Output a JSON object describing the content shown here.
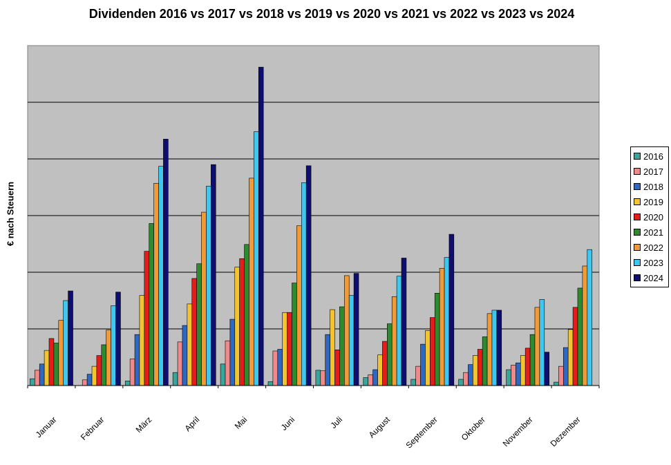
{
  "chart_data": {
    "type": "bar",
    "title": "Dividenden 2016 vs 2017 vs 2018 vs 2019 vs 2020 vs 2021 vs 2022 vs 2023 vs 2024",
    "xlabel": "",
    "ylabel": "€ nach Steuern",
    "ylim": [
      0,
      6
    ],
    "grid": true,
    "legend_position": "right",
    "categories": [
      "Januar",
      "Februar",
      "März",
      "April",
      "Mai",
      "Juni",
      "Juli",
      "August",
      "September",
      "Oktober",
      "November",
      "Dezember"
    ],
    "series": [
      {
        "name": "2016",
        "color": "#3aa59a",
        "values": [
          0.12,
          0.0,
          0.08,
          0.23,
          0.38,
          0.07,
          0.27,
          0.14,
          0.11,
          0.11,
          0.28,
          0.06
        ]
      },
      {
        "name": "2017",
        "color": "#f08a8a",
        "values": [
          0.27,
          0.1,
          0.47,
          0.77,
          0.79,
          0.61,
          0.26,
          0.19,
          0.34,
          0.23,
          0.36,
          0.34
        ]
      },
      {
        "name": "2018",
        "color": "#2f68c0",
        "values": [
          0.38,
          0.2,
          0.9,
          1.06,
          1.17,
          0.64,
          0.9,
          0.28,
          0.73,
          0.37,
          0.4,
          0.67
        ]
      },
      {
        "name": "2019",
        "color": "#f2c530",
        "values": [
          0.62,
          0.34,
          1.59,
          1.44,
          2.09,
          1.29,
          1.34,
          0.54,
          0.97,
          0.53,
          0.53,
          0.99
        ]
      },
      {
        "name": "2020",
        "color": "#e41c1c",
        "values": [
          0.83,
          0.53,
          2.37,
          1.89,
          2.24,
          1.29,
          0.63,
          0.78,
          1.2,
          0.64,
          0.66,
          1.38
        ]
      },
      {
        "name": "2021",
        "color": "#2e8a2e",
        "values": [
          0.75,
          0.72,
          2.86,
          2.15,
          2.49,
          1.81,
          1.39,
          1.09,
          1.63,
          0.86,
          0.9,
          1.72
        ]
      },
      {
        "name": "2022",
        "color": "#f09a38",
        "values": [
          1.15,
          0.98,
          3.57,
          3.06,
          3.66,
          2.82,
          1.94,
          1.57,
          2.07,
          1.27,
          1.38,
          2.11
        ]
      },
      {
        "name": "2023",
        "color": "#3ec8f0",
        "values": [
          1.5,
          1.41,
          3.87,
          3.52,
          4.48,
          3.58,
          1.59,
          1.93,
          2.26,
          1.33,
          1.52,
          2.4
        ]
      },
      {
        "name": "2024",
        "color": "#0e0e6e",
        "values": [
          1.67,
          1.65,
          4.35,
          3.9,
          5.62,
          3.88,
          1.98,
          2.25,
          2.67,
          1.33,
          0.59,
          0.0
        ]
      }
    ]
  }
}
